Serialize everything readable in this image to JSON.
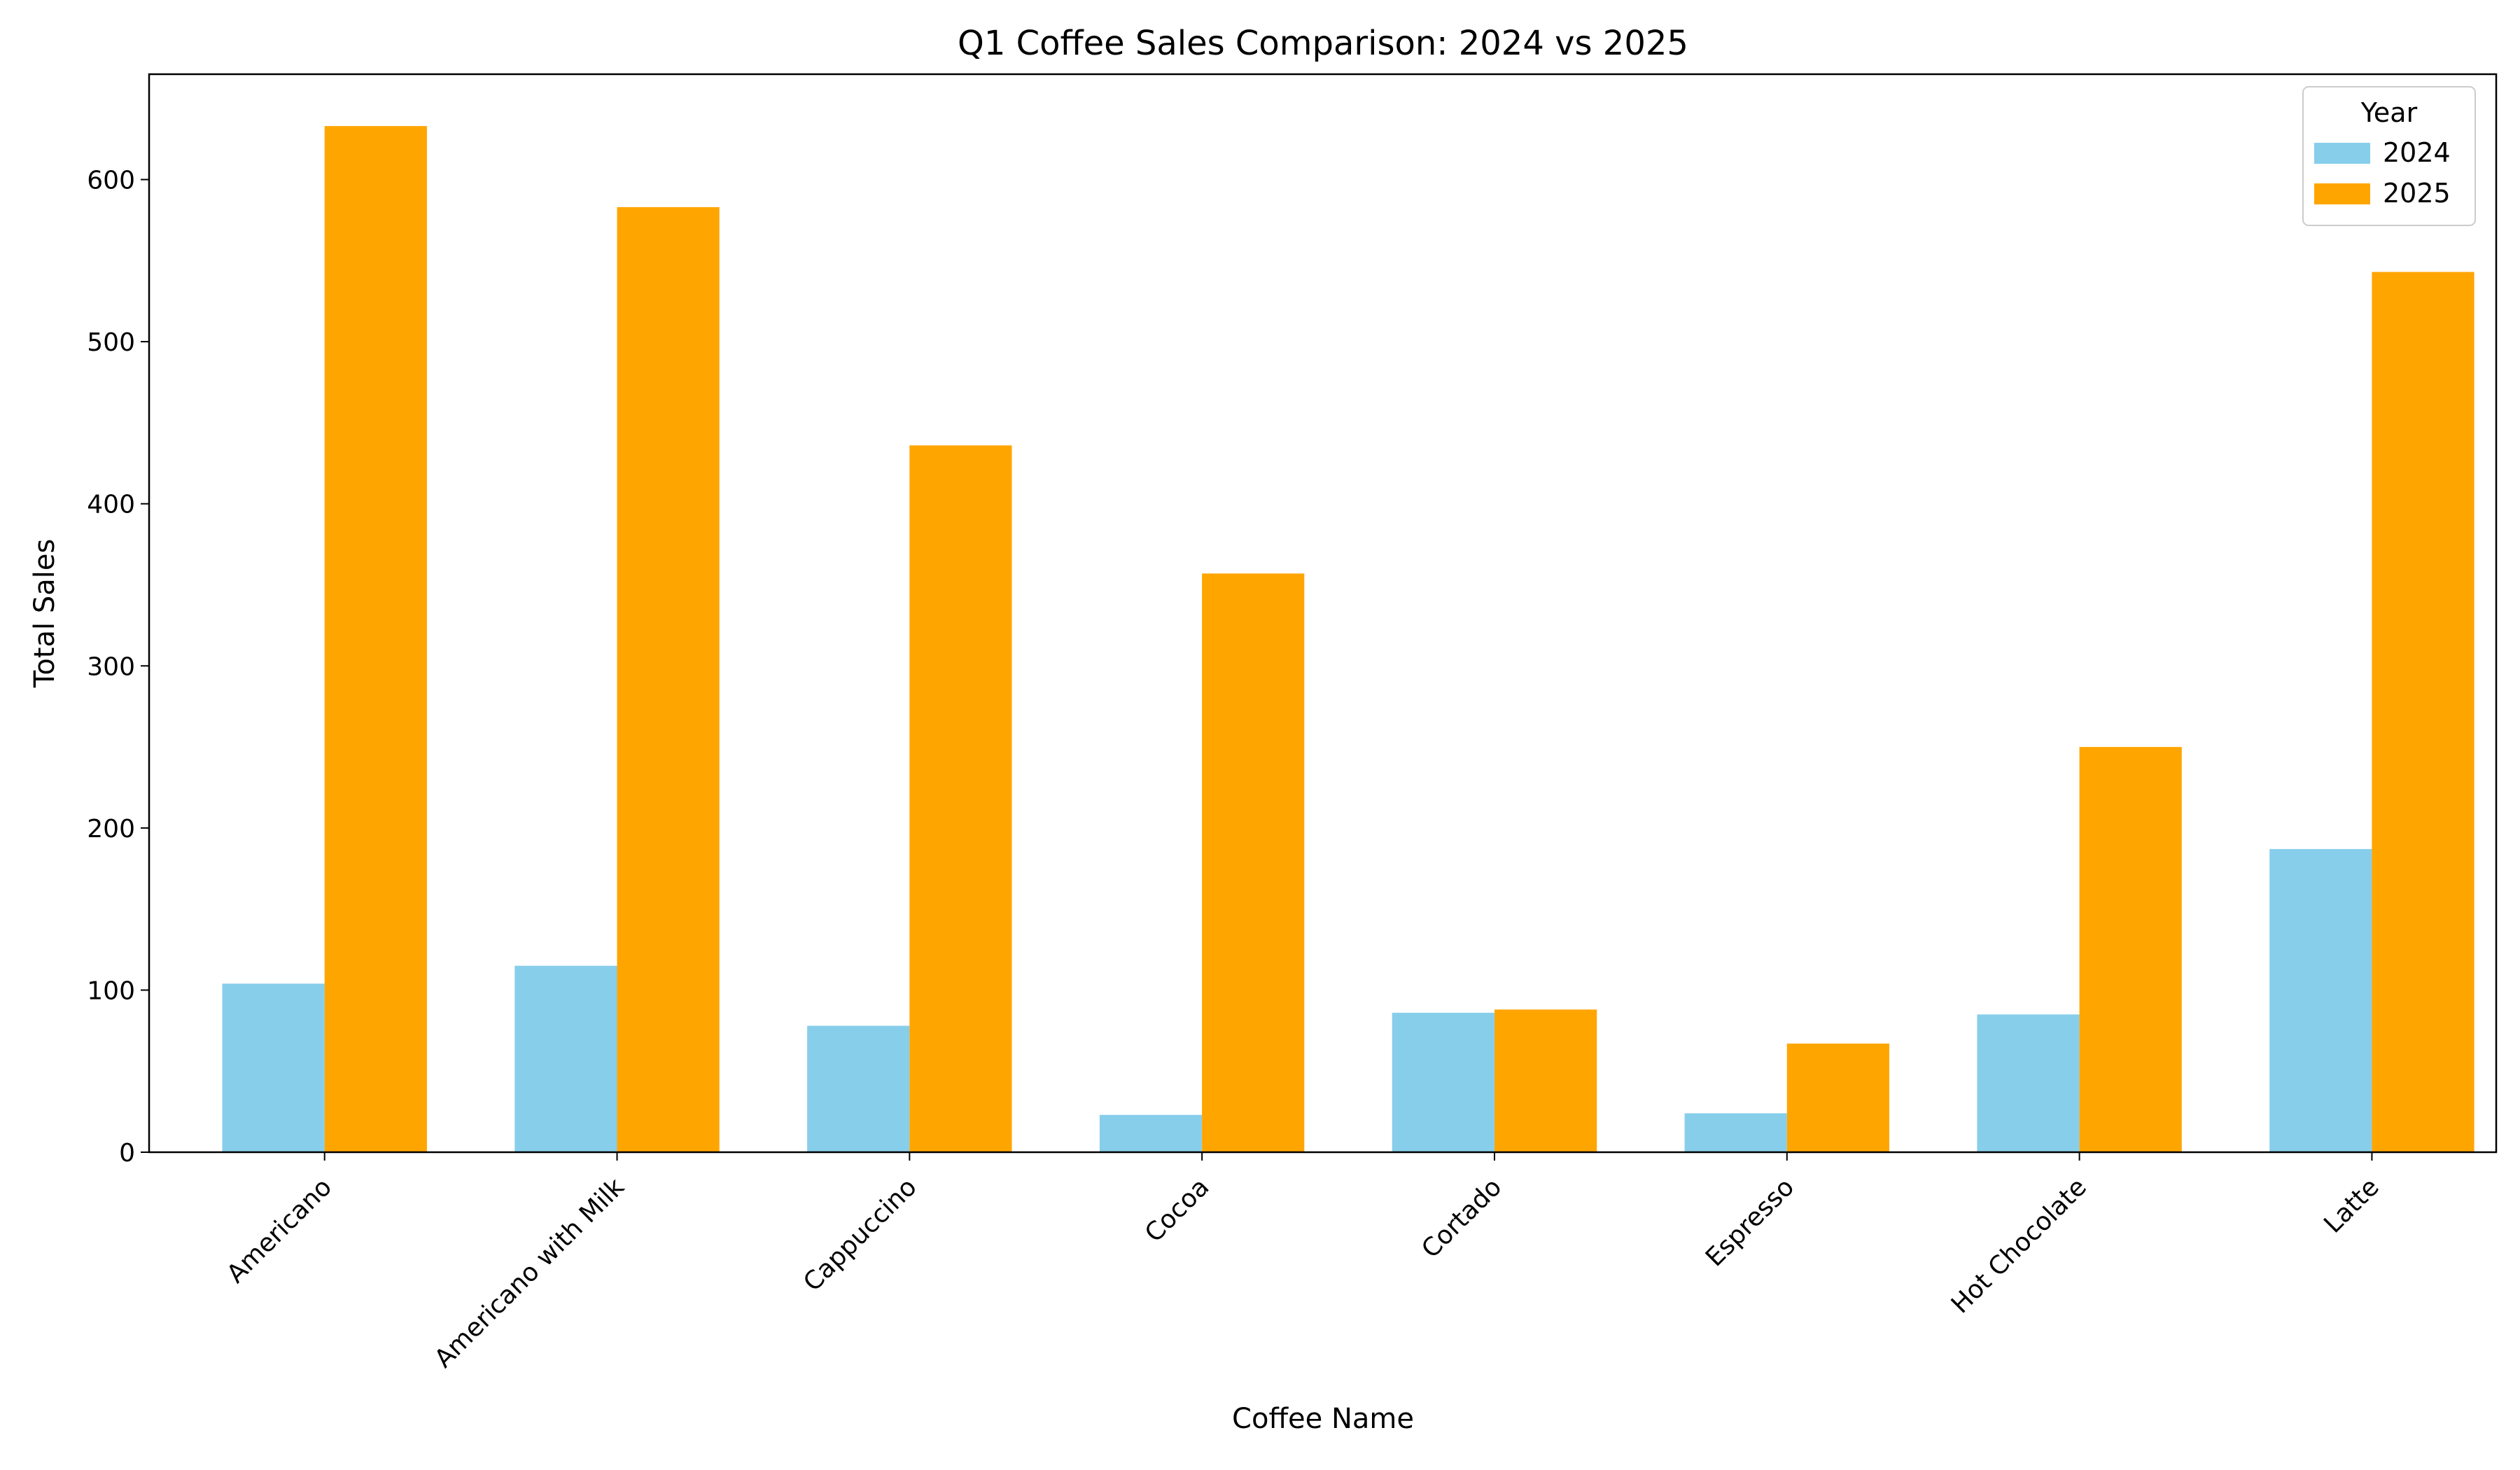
{
  "chart_data": {
    "type": "bar",
    "title": "Q1 Coffee Sales Comparison: 2024 vs 2025",
    "xlabel": "Coffee Name",
    "ylabel": "Total Sales",
    "categories": [
      "Americano",
      "Americano with Milk",
      "Cappuccino",
      "Cocoa",
      "Cortado",
      "Espresso",
      "Hot Chocolate",
      "Latte"
    ],
    "series": [
      {
        "name": "2024",
        "color": "#87CEEB",
        "values": [
          104,
          115,
          78,
          23,
          86,
          24,
          85,
          187
        ]
      },
      {
        "name": "2025",
        "color": "#FFA500",
        "values": [
          633,
          583,
          436,
          357,
          88,
          67,
          250,
          543
        ]
      }
    ],
    "ylim": [
      0,
      665
    ],
    "yticks": [
      0,
      100,
      200,
      300,
      400,
      500,
      600
    ],
    "legend": {
      "title": "Year",
      "placement": "top-right"
    },
    "grid": false,
    "x_tick_rotation": -45
  }
}
